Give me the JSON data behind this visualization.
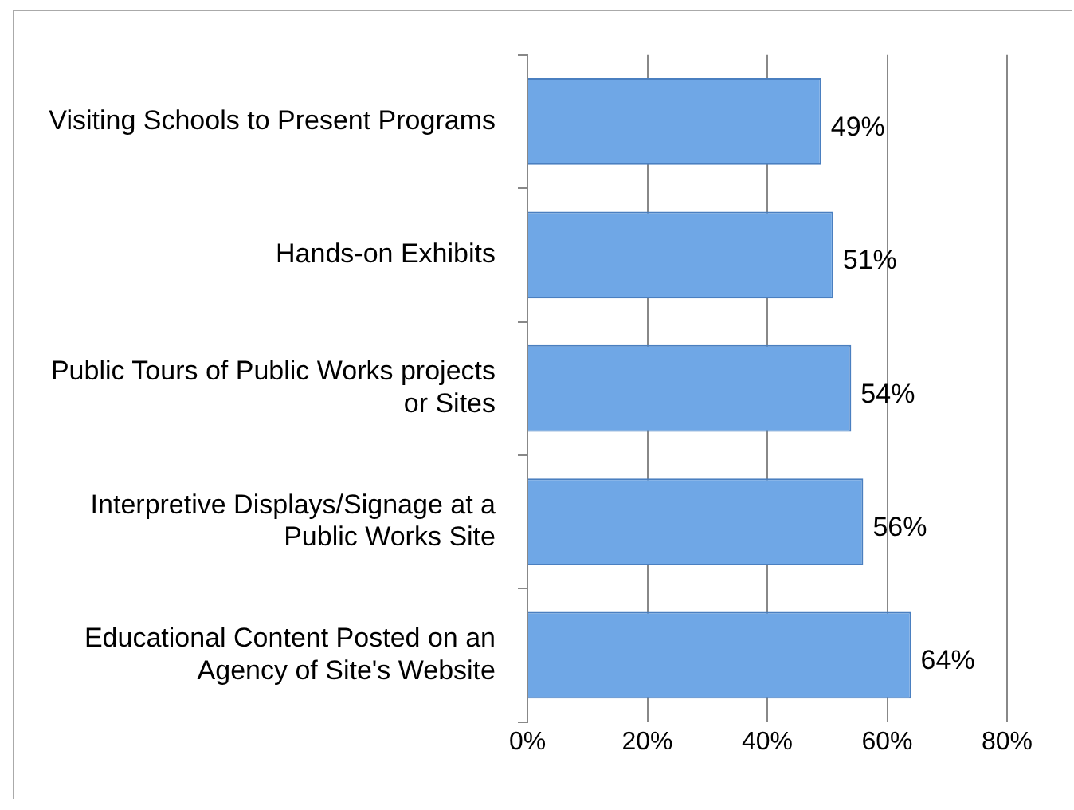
{
  "chart_data": {
    "type": "bar",
    "orientation": "horizontal",
    "categories": [
      "Visiting Schools to Present Programs",
      "Hands-on Exhibits",
      "Public Tours of Public Works projects or Sites",
      "Interpretive Displays/Signage at a Public Works Site",
      "Educational Content Posted on an Agency of Site's Website"
    ],
    "values": [
      49,
      51,
      54,
      56,
      64
    ],
    "value_labels": [
      "49%",
      "51%",
      "54%",
      "56%",
      "64%"
    ],
    "color": "#6fa7e6",
    "xlim": [
      0,
      80
    ],
    "xticks": [
      {
        "value": 0,
        "label": "0%"
      },
      {
        "value": 20,
        "label": "20%"
      },
      {
        "value": 40,
        "label": "40%"
      },
      {
        "value": 60,
        "label": "60%"
      },
      {
        "value": 80,
        "label": "80%"
      }
    ],
    "grid": "x",
    "legend": false
  }
}
